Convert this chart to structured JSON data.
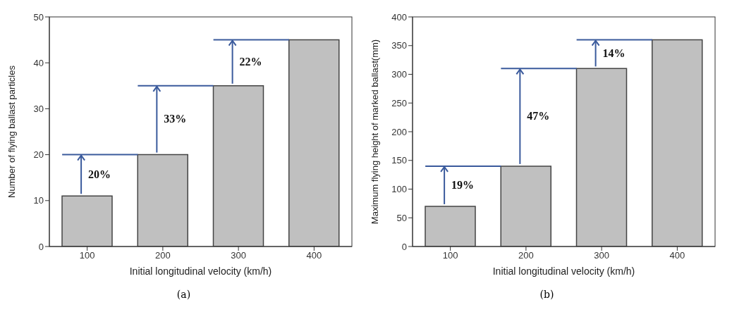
{
  "chart_data": [
    {
      "type": "bar",
      "categories": [
        "100",
        "200",
        "300",
        "400"
      ],
      "values": [
        11,
        20,
        35,
        45
      ],
      "color": "#c0c0c0",
      "ylim": [
        0,
        50
      ],
      "yticks": [
        0,
        10,
        20,
        30,
        40,
        50
      ],
      "grid": false,
      "xlabel": "Initial longitudinal velocity (km/h)",
      "ylabel": "Number of flying ballast particles",
      "annotations": [
        "20%",
        "33%",
        "22%",
        "(a)"
      ]
    },
    {
      "type": "bar",
      "categories": [
        "100",
        "200",
        "300",
        "400"
      ],
      "values": [
        70,
        140,
        310,
        360
      ],
      "color": "#c0c0c0",
      "ylim": [
        0,
        400
      ],
      "yticks": [
        0,
        50,
        100,
        150,
        200,
        250,
        300,
        350,
        400
      ],
      "grid": false,
      "xlabel": "Initial longitudinal velocity (km/h)",
      "ylabel": "Maximum flying height of marked ballast(mm)",
      "annotations": [
        "19%",
        "47%",
        "14%",
        "(b)"
      ]
    }
  ]
}
